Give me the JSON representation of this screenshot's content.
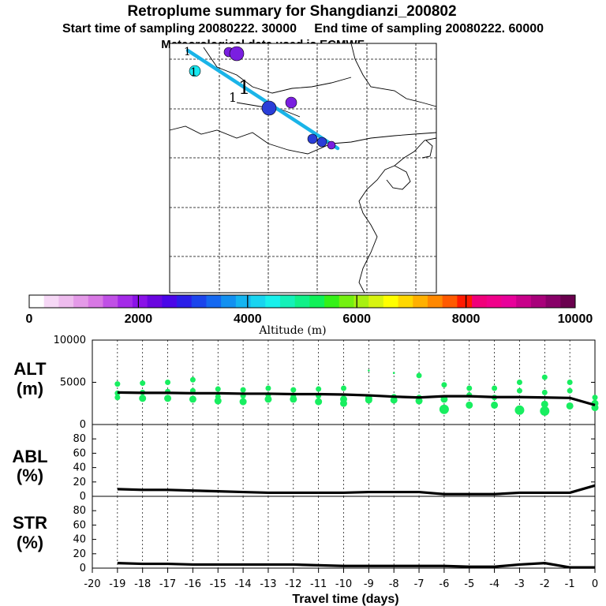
{
  "title": {
    "line1": "Retroplume summary for Shangdianzi_200802",
    "line2": "Start time of sampling 20080222. 30000     End time of sampling 20080222. 60000",
    "line3": "Meteorological data used is ECMWF"
  },
  "map": {
    "plume_line_color": "#1ab4e8",
    "labels": [
      "1",
      "1",
      "1",
      "1"
    ],
    "markers": [
      {
        "kind": "dot",
        "color": "#7a1fe0",
        "size": "small"
      },
      {
        "kind": "dot",
        "color": "#7a1fe0",
        "size": "large"
      },
      {
        "kind": "dot",
        "color": "#18e8f0",
        "size": "medium"
      },
      {
        "kind": "dot",
        "color": "#2a3ed8",
        "size": "large"
      },
      {
        "kind": "dot",
        "color": "#7a1fe0",
        "size": "medium"
      },
      {
        "kind": "dot",
        "color": "#2a3ed8",
        "size": "small"
      },
      {
        "kind": "dot",
        "color": "#2a3ed8",
        "size": "small"
      },
      {
        "kind": "dot",
        "color": "#7a1fe0",
        "size": "small"
      }
    ]
  },
  "colorbar": {
    "ticks": [
      "0",
      "2000",
      "4000",
      "6000",
      "8000",
      "10000"
    ],
    "label": "Altitude (m)",
    "colors": [
      "#ffffff",
      "#f6d8f6",
      "#eebcee",
      "#e49ae8",
      "#d878e4",
      "#c050e6",
      "#a42ae8",
      "#8a12e8",
      "#6a06e0",
      "#4a06e8",
      "#2a1ee8",
      "#1a44ec",
      "#1468f0",
      "#1290f0",
      "#14b4f0",
      "#18d4f0",
      "#18f0ec",
      "#14f0b8",
      "#10f088",
      "#10f058",
      "#34f018",
      "#74f010",
      "#a8f010",
      "#d8f410",
      "#ffff00",
      "#ffd800",
      "#ffb000",
      "#ff8800",
      "#ff5a00",
      "#ff1a00",
      "#f0007a",
      "#f0008a",
      "#e8009a",
      "#c8008a",
      "#a8007a",
      "#880068",
      "#6a004e"
    ]
  },
  "chart_data": [
    {
      "type": "line",
      "panel": "ALT",
      "ylabel_line1": "ALT",
      "ylabel_line2": "(m)",
      "ylim": [
        0,
        10000
      ],
      "yticks": [
        "10000",
        "5000",
        "0"
      ],
      "ytick_values": [
        10000,
        5000,
        0
      ],
      "x": [
        -19,
        -18,
        -17,
        -16,
        -15,
        -14,
        -13,
        -12,
        -11,
        -10,
        -9,
        -8,
        -7,
        -6,
        -5,
        -4,
        -3,
        -2,
        -1,
        0
      ],
      "series": [
        {
          "name": "median altitude",
          "color": "#000000",
          "values": [
            3800,
            3750,
            3750,
            3700,
            3700,
            3650,
            3650,
            3600,
            3600,
            3550,
            3450,
            3300,
            3200,
            3350,
            3350,
            3250,
            3250,
            3200,
            3150,
            2300
          ]
        }
      ],
      "scatter_color": "#18ee60",
      "scatter": [
        {
          "x": -19,
          "y": 4800
        },
        {
          "x": -19,
          "y": 3700
        },
        {
          "x": -19,
          "y": 3200
        },
        {
          "x": -18,
          "y": 4900
        },
        {
          "x": -18,
          "y": 3800
        },
        {
          "x": -18,
          "y": 3100
        },
        {
          "x": -17,
          "y": 5000
        },
        {
          "x": -17,
          "y": 3900
        },
        {
          "x": -17,
          "y": 3100
        },
        {
          "x": -16,
          "y": 5300
        },
        {
          "x": -16,
          "y": 4000
        },
        {
          "x": -16,
          "y": 3000
        },
        {
          "x": -15,
          "y": 4200
        },
        {
          "x": -15,
          "y": 3300
        },
        {
          "x": -15,
          "y": 2800
        },
        {
          "x": -14,
          "y": 4100
        },
        {
          "x": -14,
          "y": 3400
        },
        {
          "x": -14,
          "y": 2700
        },
        {
          "x": -13,
          "y": 4300
        },
        {
          "x": -13,
          "y": 3500
        },
        {
          "x": -13,
          "y": 3000
        },
        {
          "x": -12,
          "y": 4100
        },
        {
          "x": -12,
          "y": 3300
        },
        {
          "x": -12,
          "y": 3000
        },
        {
          "x": -11,
          "y": 4200
        },
        {
          "x": -11,
          "y": 3400
        },
        {
          "x": -11,
          "y": 2700
        },
        {
          "x": -10,
          "y": 4300
        },
        {
          "x": -10,
          "y": 3000
        },
        {
          "x": -10,
          "y": 2500
        },
        {
          "x": -9,
          "y": 6400
        },
        {
          "x": -9,
          "y": 3100
        },
        {
          "x": -9,
          "y": 2900
        },
        {
          "x": -8,
          "y": 6100
        },
        {
          "x": -8,
          "y": 3300
        },
        {
          "x": -8,
          "y": 2900
        },
        {
          "x": -7,
          "y": 5800
        },
        {
          "x": -7,
          "y": 3200
        },
        {
          "x": -7,
          "y": 2800
        },
        {
          "x": -6,
          "y": 4700
        },
        {
          "x": -6,
          "y": 3000
        },
        {
          "x": -6,
          "y": 1800
        },
        {
          "x": -5,
          "y": 4300
        },
        {
          "x": -5,
          "y": 3500
        },
        {
          "x": -5,
          "y": 2300
        },
        {
          "x": -4,
          "y": 4300
        },
        {
          "x": -4,
          "y": 3200
        },
        {
          "x": -4,
          "y": 2300
        },
        {
          "x": -3,
          "y": 5000
        },
        {
          "x": -3,
          "y": 4000
        },
        {
          "x": -3,
          "y": 1700
        },
        {
          "x": -2,
          "y": 5600
        },
        {
          "x": -2,
          "y": 3800
        },
        {
          "x": -2,
          "y": 2400
        },
        {
          "x": -2,
          "y": 1600
        },
        {
          "x": -1,
          "y": 5000
        },
        {
          "x": -1,
          "y": 4000
        },
        {
          "x": -1,
          "y": 2200
        },
        {
          "x": 0,
          "y": 3200
        },
        {
          "x": 0,
          "y": 2500
        },
        {
          "x": 0,
          "y": 2000
        }
      ]
    },
    {
      "type": "line",
      "panel": "ABL",
      "ylabel_line1": "ABL",
      "ylabel_line2": "(%)",
      "ylim": [
        0,
        100
      ],
      "yticks": [
        "80",
        "60",
        "40",
        "20",
        "0"
      ],
      "ytick_values": [
        80,
        60,
        40,
        20,
        0
      ],
      "x": [
        -19,
        -18,
        -17,
        -16,
        -15,
        -14,
        -13,
        -12,
        -11,
        -10,
        -9,
        -8,
        -7,
        -6,
        -5,
        -4,
        -3,
        -2,
        -1,
        0
      ],
      "series": [
        {
          "name": "ABL fraction",
          "color": "#000000",
          "values": [
            10,
            9,
            9,
            8,
            7,
            6,
            5,
            5,
            5,
            5,
            6,
            6,
            6,
            3,
            3,
            3,
            5,
            5,
            5,
            15
          ]
        }
      ]
    },
    {
      "type": "line",
      "panel": "STR",
      "ylabel_line1": "STR",
      "ylabel_line2": "(%)",
      "ylim": [
        0,
        100
      ],
      "yticks": [
        "80",
        "60",
        "40",
        "20",
        "0"
      ],
      "ytick_values": [
        80,
        60,
        40,
        20,
        0
      ],
      "x": [
        -19,
        -18,
        -17,
        -16,
        -15,
        -14,
        -13,
        -12,
        -11,
        -10,
        -9,
        -8,
        -7,
        -6,
        -5,
        -4,
        -3,
        -2,
        -1,
        0
      ],
      "series": [
        {
          "name": "stratospheric fraction",
          "color": "#000000",
          "values": [
            7,
            6,
            6,
            5,
            5,
            5,
            5,
            5,
            4,
            3,
            3,
            3,
            3,
            3,
            2,
            2,
            5,
            7,
            1,
            1
          ]
        }
      ]
    }
  ],
  "xaxis": {
    "ticks": [
      "-20",
      "-19",
      "-18",
      "-17",
      "-16",
      "-15",
      "-14",
      "-13",
      "-12",
      "-11",
      "-10",
      "-9",
      "-8",
      "-7",
      "-6",
      "-5",
      "-4",
      "-3",
      "-2",
      "-1",
      "0"
    ],
    "tick_values": [
      -20,
      -19,
      -18,
      -17,
      -16,
      -15,
      -14,
      -13,
      -12,
      -11,
      -10,
      -9,
      -8,
      -7,
      -6,
      -5,
      -4,
      -3,
      -2,
      -1,
      0
    ],
    "label": "Travel time (days)"
  }
}
